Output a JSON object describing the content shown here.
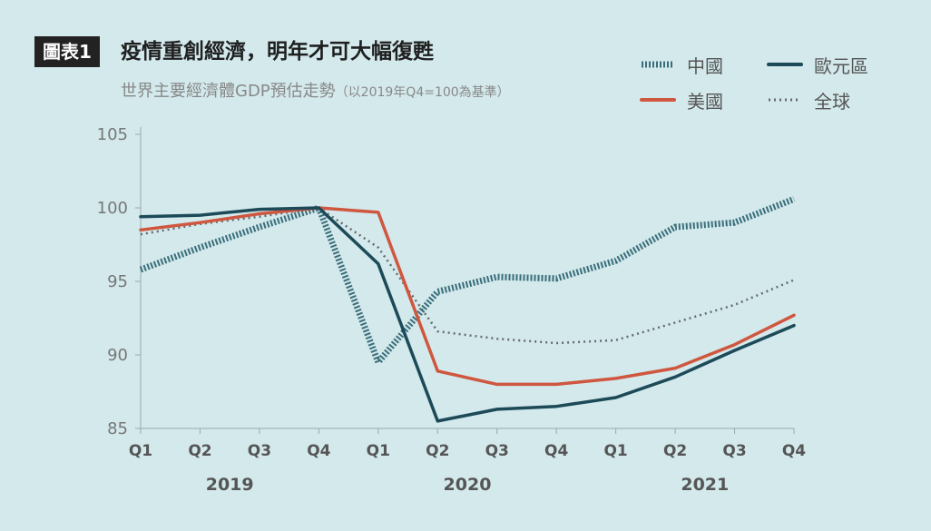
{
  "badge": "圖表1",
  "title": "疫情重創經濟，明年才可大幅復甦",
  "subtitle": "世界主要經濟體GDP預估走勢",
  "subtitle_note": "（以2019年Q4=100為基準）",
  "chart_data": {
    "type": "line",
    "categories": [
      "Q1",
      "Q2",
      "Q3",
      "Q4",
      "Q1",
      "Q2",
      "Q3",
      "Q4",
      "Q1",
      "Q2",
      "Q3",
      "Q4"
    ],
    "years": [
      "2019",
      "2020",
      "2021"
    ],
    "yticks": [
      "105",
      "100",
      "95",
      "90",
      "85"
    ],
    "ylim": [
      85,
      105
    ],
    "series": [
      {
        "name": "中國",
        "style": "hatched",
        "color": "#3a6e7a",
        "values": [
          95.8,
          97.3,
          98.7,
          100.0,
          89.5,
          94.3,
          95.3,
          95.2,
          96.4,
          98.7,
          99.0,
          100.6
        ]
      },
      {
        "name": "歐元區",
        "style": "solid",
        "color": "#1d4a58",
        "values": [
          99.4,
          99.5,
          99.9,
          100.0,
          96.2,
          85.5,
          86.3,
          86.5,
          87.1,
          88.5,
          90.3,
          92.0
        ]
      },
      {
        "name": "美國",
        "style": "solid",
        "color": "#d0573f",
        "values": [
          98.5,
          99.0,
          99.6,
          100.0,
          99.7,
          88.9,
          88.0,
          88.0,
          88.4,
          89.1,
          90.7,
          92.7
        ]
      },
      {
        "name": "全球",
        "style": "dotted",
        "color": "#666b70",
        "values": [
          98.2,
          98.9,
          99.4,
          100.0,
          97.3,
          91.6,
          91.1,
          90.8,
          91.0,
          92.2,
          93.4,
          95.1
        ]
      }
    ]
  }
}
